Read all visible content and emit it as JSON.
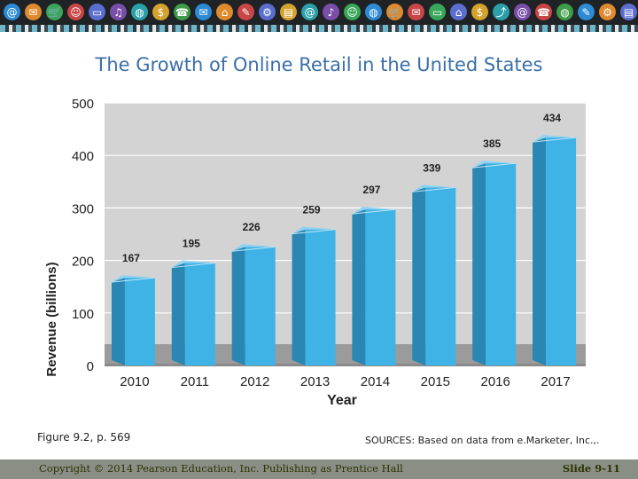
{
  "banner": {
    "icons": [
      {
        "name": "at-icon",
        "glyph": "@",
        "color": "#2d8bd6"
      },
      {
        "name": "email-icon",
        "glyph": "✉",
        "color": "#e08a2e"
      },
      {
        "name": "cart-icon",
        "glyph": "🛒",
        "color": "#3aa65a"
      },
      {
        "name": "person-icon",
        "glyph": "☺",
        "color": "#c94646"
      },
      {
        "name": "laptop-icon",
        "glyph": "▭",
        "color": "#5b6ed0"
      },
      {
        "name": "headphones-icon",
        "glyph": "♫",
        "color": "#7a4ea8"
      },
      {
        "name": "globe-icon",
        "glyph": "◍",
        "color": "#2aa0a8"
      },
      {
        "name": "dollar-icon",
        "glyph": "$",
        "color": "#d5a22e"
      },
      {
        "name": "phone-icon",
        "glyph": "☎",
        "color": "#3d9c48"
      },
      {
        "name": "sms-icon",
        "glyph": "✉",
        "color": "#2d8bd6"
      },
      {
        "name": "home-icon",
        "glyph": "⌂",
        "color": "#e08a2e"
      },
      {
        "name": "chat-icon",
        "glyph": "✎",
        "color": "#c94646"
      },
      {
        "name": "gear-icon",
        "glyph": "⚙",
        "color": "#5b6ed0"
      },
      {
        "name": "folder-icon",
        "glyph": "▤",
        "color": "#d5a22e"
      },
      {
        "name": "at-icon",
        "glyph": "@",
        "color": "#2aa0a8"
      },
      {
        "name": "music-icon",
        "glyph": "♪",
        "color": "#7a4ea8"
      },
      {
        "name": "person-icon",
        "glyph": "☺",
        "color": "#3aa65a"
      },
      {
        "name": "globe-icon",
        "glyph": "◍",
        "color": "#2d8bd6"
      },
      {
        "name": "cart-icon",
        "glyph": "🛒",
        "color": "#e08a2e"
      },
      {
        "name": "email-icon",
        "glyph": "✉",
        "color": "#c94646"
      },
      {
        "name": "laptop-icon",
        "glyph": "▭",
        "color": "#3aa65a"
      },
      {
        "name": "home-icon",
        "glyph": "⌂",
        "color": "#5b6ed0"
      },
      {
        "name": "dollar-icon",
        "glyph": "$",
        "color": "#d5a22e"
      },
      {
        "name": "share-icon",
        "glyph": "⤴",
        "color": "#2aa0a8"
      },
      {
        "name": "at-icon",
        "glyph": "@",
        "color": "#7a4ea8"
      },
      {
        "name": "phone-icon",
        "glyph": "☎",
        "color": "#c94646"
      },
      {
        "name": "globe-icon",
        "glyph": "◍",
        "color": "#3d9c48"
      },
      {
        "name": "chat-icon",
        "glyph": "✎",
        "color": "#2d8bd6"
      },
      {
        "name": "gear-icon",
        "glyph": "⚙",
        "color": "#e08a2e"
      },
      {
        "name": "folder-icon",
        "glyph": "▤",
        "color": "#5b6ed0"
      },
      {
        "name": "music-icon",
        "glyph": "♪",
        "color": "#3aa65a"
      },
      {
        "name": "person-icon",
        "glyph": "☺",
        "color": "#d5a22e"
      }
    ]
  },
  "slide": {
    "title": "The Growth of Online Retail in the United States",
    "figure_caption": "Figure 9.2, p. 569",
    "sources": "SOURCES:  Based on data from e.Marketer, Inc.,.",
    "copyright": "Copyright © 2014 Pearson Education, Inc. Publishing as Prentice Hall",
    "slide_number": "Slide 9-11"
  },
  "colors": {
    "bar_front": "#3fb3e6",
    "bar_side": "#2a86b3",
    "bar_top": "#8fd3f2",
    "plot_bg": "#d3d3d3",
    "floor": "#9b9b9b",
    "title": "#3a6fa8"
  },
  "chart_data": {
    "type": "bar",
    "title": "The Growth of Online Retail in the United States",
    "xlabel": "Year",
    "ylabel": "Revenue (billions)",
    "categories": [
      "2010",
      "2011",
      "2012",
      "2013",
      "2014",
      "2015",
      "2016",
      "2017"
    ],
    "values": [
      167,
      195,
      226,
      259,
      297,
      339,
      385,
      434
    ],
    "data_labels": [
      "167",
      "195",
      "226",
      "259",
      "297",
      "339",
      "385",
      "434"
    ],
    "yticks": [
      0,
      100,
      200,
      300,
      400,
      500
    ],
    "ylim": [
      0,
      500
    ],
    "grid": true
  }
}
